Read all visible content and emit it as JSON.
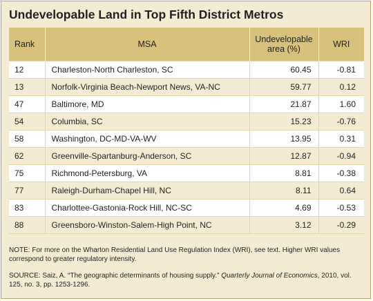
{
  "title": "Undevelopable Land in Top Fifth District Metros",
  "table": {
    "headers": {
      "rank": "Rank",
      "msa": "MSA",
      "area_line1": "Undevelopable",
      "area_line2": "area (%)",
      "wri": "WRI"
    },
    "rows": [
      {
        "rank": "12",
        "msa": "Charleston-North Charleston, SC",
        "area": "60.45",
        "wri": "-0.81"
      },
      {
        "rank": "13",
        "msa": "Norfolk-Virginia Beach-Newport News, VA-NC",
        "area": "59.77",
        "wri": "0.12"
      },
      {
        "rank": "47",
        "msa": "Baltimore, MD",
        "area": "21.87",
        "wri": "1.60"
      },
      {
        "rank": "54",
        "msa": "Columbia, SC",
        "area": "15.23",
        "wri": "-0.76"
      },
      {
        "rank": "58",
        "msa": "Washington, DC-MD-VA-WV",
        "area": "13.95",
        "wri": "0.31"
      },
      {
        "rank": "62",
        "msa": "Greenville-Spartanburg-Anderson, SC",
        "area": "12.87",
        "wri": "-0.94"
      },
      {
        "rank": "75",
        "msa": "Richmond-Petersburg, VA",
        "area": "8.81",
        "wri": "-0.38"
      },
      {
        "rank": "77",
        "msa": "Raleigh-Durham-Chapel Hill, NC",
        "area": "8.11",
        "wri": "0.64"
      },
      {
        "rank": "83",
        "msa": "Charlottee-Gastonia-Rock Hill, NC-SC",
        "area": "4.69",
        "wri": "-0.53"
      },
      {
        "rank": "88",
        "msa": "Greensboro-Winston-Salem-High Point, NC",
        "area": "3.12",
        "wri": "-0.29"
      }
    ]
  },
  "note": {
    "label": "NOTE:",
    "text": " For more on the Wharton Residential Land Use Regulation Index (WRI), see text. Higher WRI values correspond to greater regulatory intensity."
  },
  "source": {
    "label": "SOURCE:",
    "text_before": " Saiz, A. “The geographic determinants of housing supply.” ",
    "journal": "Quarterly Journal of Economics",
    "text_after": ", 2010, vol. 125, no. 3, pp. 1253-1296."
  },
  "colors": {
    "panel_background": "#f4ecd2",
    "header_background": "#d7c17d",
    "border": "#b7a36a"
  }
}
